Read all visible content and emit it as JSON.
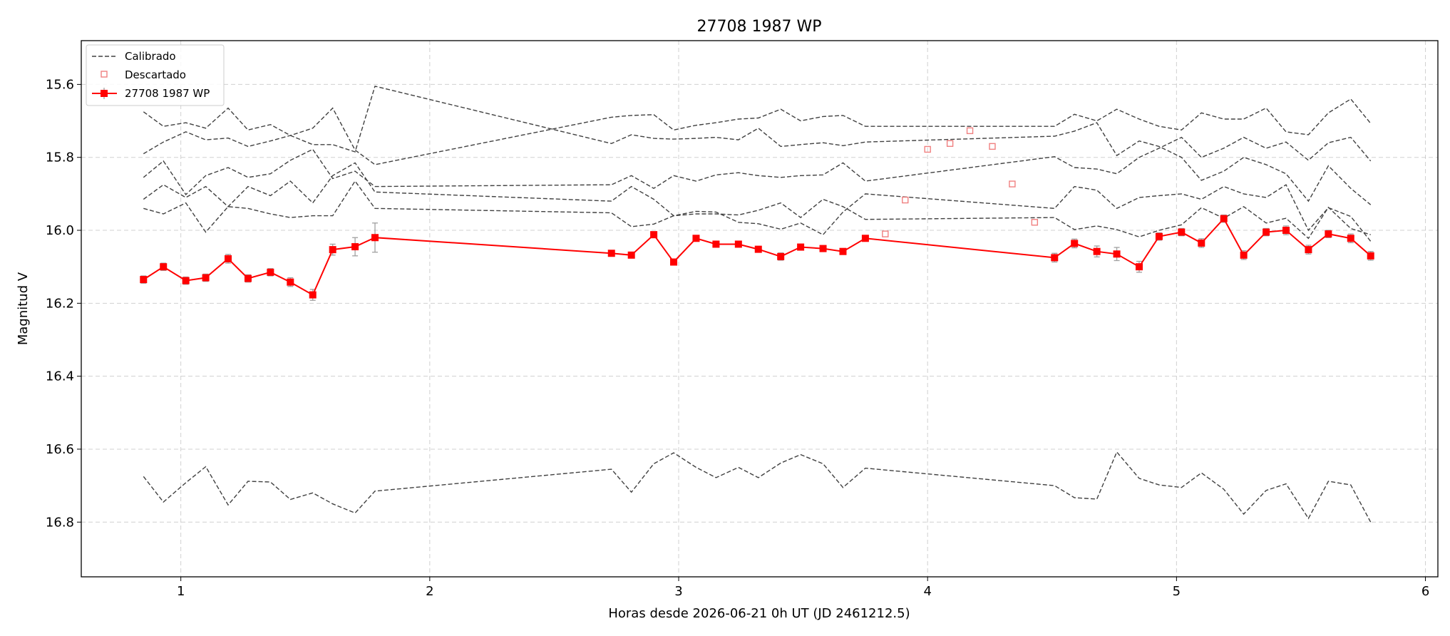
{
  "chart_data": {
    "type": "line",
    "title": "27708 1987 WP",
    "xlabel": "Horas desde 2026-06-21 0h UT (JD 2461212.5)",
    "ylabel": "Magnitud V",
    "xlim": [
      0.6,
      6.05
    ],
    "ylim": [
      16.95,
      15.48
    ],
    "y_inverted": true,
    "grid": true,
    "legend_position": "top-left",
    "xticks": [
      1,
      2,
      3,
      4,
      5,
      6
    ],
    "yticks": [
      15.6,
      15.8,
      16.0,
      16.2,
      16.4,
      16.6,
      16.8
    ],
    "ytick_labels": [
      "15.6",
      "15.8",
      "16.0",
      "16.2",
      "16.4",
      "16.6",
      "16.8"
    ],
    "legend": [
      "Calibrado",
      "Descartado",
      "27708 1987 WP"
    ],
    "colors": {
      "target": "#ff0000",
      "calibrated": "#404040",
      "discarded": "#f08080",
      "errorbar": "#a0a0a0"
    },
    "x": [
      0.85,
      0.93,
      1.02,
      1.1,
      1.19,
      1.27,
      1.36,
      1.44,
      1.53,
      1.61,
      1.7,
      1.78,
      2.73,
      2.81,
      2.9,
      2.98,
      3.07,
      3.15,
      3.24,
      3.32,
      3.41,
      3.49,
      3.58,
      3.66,
      3.75,
      4.51,
      4.59,
      4.68,
      4.76,
      4.85,
      4.93,
      5.02,
      5.1,
      5.19,
      5.27,
      5.36,
      5.44,
      5.53,
      5.61,
      5.7,
      5.78
    ],
    "series": [
      {
        "name": "27708 1987 WP",
        "values": [
          16.135,
          16.1,
          16.138,
          16.13,
          16.078,
          16.132,
          16.115,
          16.142,
          16.177,
          16.053,
          16.045,
          16.02,
          16.063,
          16.068,
          16.012,
          16.087,
          16.022,
          16.038,
          16.038,
          16.052,
          16.072,
          16.046,
          16.05,
          16.058,
          16.022,
          16.075,
          16.036,
          16.058,
          16.065,
          16.1,
          16.017,
          16.005,
          16.035,
          15.968,
          16.068,
          16.005,
          16.0,
          16.053,
          16.01,
          16.022,
          16.07
        ],
        "errors": [
          0.01,
          0.01,
          0.01,
          0.01,
          0.012,
          0.01,
          0.01,
          0.012,
          0.015,
          0.015,
          0.025,
          0.04,
          0.008,
          0.008,
          0.008,
          0.008,
          0.008,
          0.008,
          0.008,
          0.008,
          0.01,
          0.008,
          0.008,
          0.008,
          0.008,
          0.012,
          0.012,
          0.015,
          0.018,
          0.015,
          0.01,
          0.01,
          0.012,
          0.01,
          0.012,
          0.01,
          0.012,
          0.012,
          0.01,
          0.012,
          0.012
        ]
      }
    ],
    "calibrated": [
      [
        15.675,
        15.715,
        15.705,
        15.72,
        15.665,
        15.725,
        15.71,
        15.74,
        15.765,
        15.765,
        15.785,
        15.605,
        15.762,
        15.738,
        15.748,
        15.75,
        15.748,
        15.745,
        15.752,
        15.72,
        15.77,
        15.765,
        15.76,
        15.768,
        15.758,
        15.742,
        15.728,
        15.705,
        15.795,
        15.755,
        15.77,
        15.8,
        15.863,
        15.838,
        15.8,
        15.82,
        15.845,
        15.92,
        15.823,
        15.885,
        15.93
      ],
      [
        15.79,
        15.758,
        15.73,
        15.752,
        15.747,
        15.77,
        15.755,
        15.74,
        15.72,
        15.665,
        15.78,
        15.82,
        15.69,
        15.685,
        15.683,
        15.725,
        15.712,
        15.705,
        15.695,
        15.692,
        15.668,
        15.7,
        15.688,
        15.685,
        15.715,
        15.715,
        15.682,
        15.7,
        15.668,
        15.695,
        15.715,
        15.725,
        15.678,
        15.695,
        15.695,
        15.665,
        15.73,
        15.738,
        15.678,
        15.64,
        15.707
      ],
      [
        15.855,
        15.81,
        15.902,
        15.85,
        15.828,
        15.855,
        15.845,
        15.808,
        15.778,
        15.858,
        15.838,
        15.88,
        15.875,
        15.85,
        15.885,
        15.85,
        15.865,
        15.848,
        15.842,
        15.85,
        15.855,
        15.85,
        15.848,
        15.815,
        15.865,
        15.798,
        15.828,
        15.832,
        15.845,
        15.8,
        15.775,
        15.745,
        15.8,
        15.775,
        15.745,
        15.775,
        15.758,
        15.808,
        15.76,
        15.745,
        15.81
      ],
      [
        15.915,
        15.875,
        15.91,
        15.88,
        15.935,
        15.88,
        15.905,
        15.865,
        15.925,
        15.85,
        15.815,
        15.895,
        15.92,
        15.88,
        15.915,
        15.96,
        15.948,
        15.95,
        15.978,
        15.982,
        15.997,
        15.98,
        16.012,
        15.95,
        15.9,
        15.94,
        15.88,
        15.89,
        15.94,
        15.91,
        15.905,
        15.9,
        15.915,
        15.88,
        15.9,
        15.91,
        15.875,
        16.0,
        15.938,
        15.962,
        16.03
      ],
      [
        15.94,
        15.955,
        15.925,
        16.005,
        15.935,
        15.94,
        15.955,
        15.965,
        15.96,
        15.96,
        15.865,
        15.94,
        15.952,
        15.99,
        15.983,
        15.96,
        15.955,
        15.955,
        15.958,
        15.945,
        15.925,
        15.965,
        15.915,
        15.935,
        15.97,
        15.965,
        15.998,
        15.988,
        15.998,
        16.018,
        16.0,
        15.985,
        15.938,
        15.967,
        15.935,
        15.98,
        15.967,
        16.022,
        15.937,
        15.995,
        16.012
      ],
      [
        16.675,
        16.745,
        16.692,
        16.648,
        16.753,
        16.688,
        16.69,
        16.738,
        16.72,
        16.75,
        16.775,
        16.715,
        16.655,
        16.718,
        16.64,
        16.61,
        16.65,
        16.678,
        16.65,
        16.678,
        16.638,
        16.615,
        16.64,
        16.705,
        16.652,
        16.7,
        16.733,
        16.737,
        16.608,
        16.68,
        16.698,
        16.705,
        16.665,
        16.71,
        16.778,
        16.713,
        16.695,
        16.79,
        16.688,
        16.698,
        16.8
      ]
    ],
    "discarded": {
      "x": [
        3.83,
        3.91,
        4.0,
        4.09,
        4.17,
        4.26,
        4.34,
        4.43
      ],
      "values": [
        16.01,
        15.917,
        15.778,
        15.762,
        15.727,
        15.77,
        15.873,
        15.978
      ]
    }
  }
}
